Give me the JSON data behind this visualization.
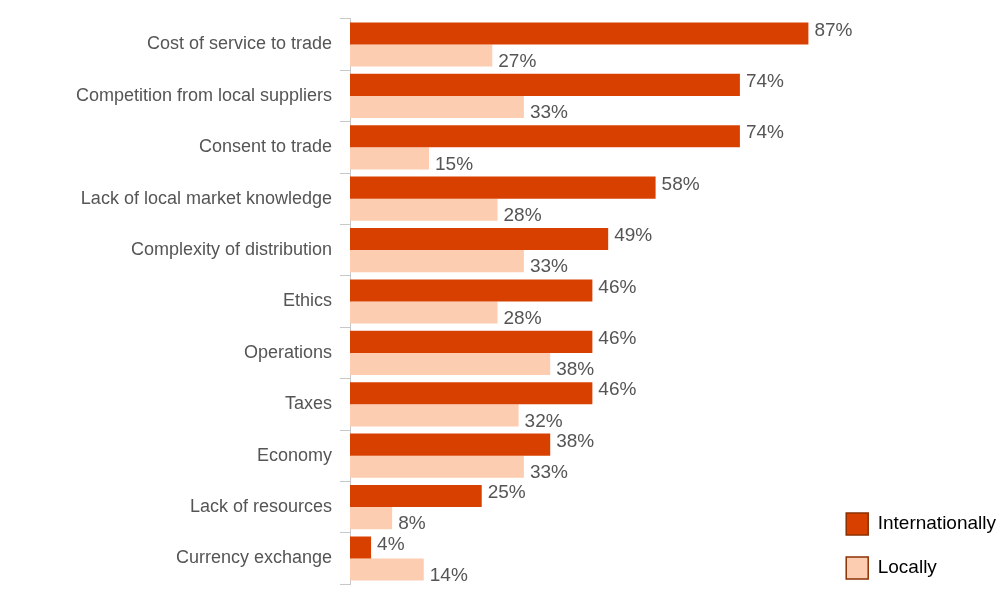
{
  "chart_data": {
    "type": "bar",
    "orientation": "horizontal",
    "legend": "bottom right",
    "grid": false,
    "categories": [
      "Cost of service to trade",
      "Competition from local suppliers",
      "Consent to trade",
      "Lack of local market knowledge",
      "Complexity of distribution",
      "Ethics",
      "Operations",
      "Taxes",
      "Economy",
      "Lack of resources",
      "Currency exchange"
    ],
    "series": [
      {
        "name": "Internationally",
        "color": "#d84000",
        "values": [
          87,
          74,
          74,
          58,
          49,
          46,
          46,
          46,
          38,
          25,
          4
        ],
        "value_labels": [
          "87%",
          "74%",
          "74%",
          "58%",
          "49%",
          "46%",
          "46%",
          "46%",
          "38%",
          "25%",
          "4%"
        ]
      },
      {
        "name": "Locally",
        "color": "#fccdb0",
        "values": [
          27,
          33,
          15,
          28,
          33,
          28,
          38,
          32,
          33,
          8,
          14
        ],
        "value_labels": [
          "27%",
          "33%",
          "15%",
          "28%",
          "33%",
          "28%",
          "38%",
          "32%",
          "33%",
          "8%",
          "14%"
        ]
      }
    ]
  }
}
